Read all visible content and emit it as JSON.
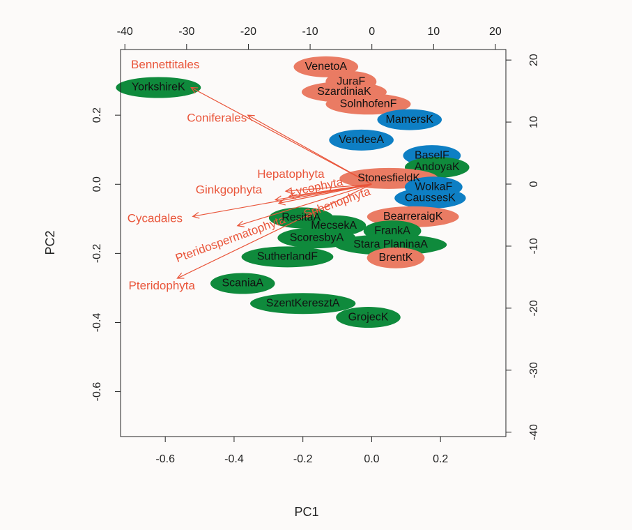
{
  "chart_data": {
    "type": "scatter",
    "subtype": "PCA biplot",
    "xlabel": "PC1",
    "ylabel": "PC2",
    "x_primary": {
      "lim": [
        -0.73,
        0.39
      ],
      "ticks": [
        -0.6,
        -0.4,
        -0.2,
        0.0,
        0.2
      ],
      "tick_labels": [
        "-0.6",
        "-0.4",
        "-0.2",
        "0.0",
        "0.2"
      ]
    },
    "y_primary": {
      "lim": [
        -0.73,
        0.39
      ],
      "ticks": [
        -0.6,
        -0.4,
        -0.2,
        0.0,
        0.2
      ],
      "tick_labels": [
        "-0.6",
        "-0.4",
        "-0.2",
        "0.0",
        "0.2"
      ]
    },
    "x_secondary": {
      "lim": [
        -40.7,
        21.7
      ],
      "ticks": [
        -40,
        -30,
        -20,
        -10,
        0,
        10,
        20
      ],
      "tick_labels": [
        "-40",
        "-30",
        "-20",
        "-10",
        "0",
        "10",
        "20"
      ]
    },
    "y_secondary": {
      "lim": [
        -40.7,
        21.7
      ],
      "ticks": [
        -40,
        -30,
        -20,
        -10,
        0,
        10,
        20
      ],
      "tick_labels": [
        "-40",
        "-30",
        "-20",
        "-10",
        "0",
        "10",
        "20"
      ]
    },
    "colors": {
      "green": "#0f8a3c",
      "blue": "#0e7fc4",
      "salmon": "#ea7b63",
      "loading": "#e9553a"
    },
    "points": [
      {
        "label": "VenetoA",
        "x": -0.133,
        "y": 0.34,
        "group": "salmon"
      },
      {
        "label": "JuraF",
        "x": -0.06,
        "y": 0.297,
        "group": "salmon"
      },
      {
        "label": "SzardiniaK",
        "x": -0.08,
        "y": 0.267,
        "group": "salmon"
      },
      {
        "label": "SolnhofenF",
        "x": -0.01,
        "y": 0.232,
        "group": "salmon"
      },
      {
        "label": "YorkshireK",
        "x": -0.62,
        "y": 0.28,
        "group": "green"
      },
      {
        "label": "MamersK",
        "x": 0.11,
        "y": 0.187,
        "group": "blue"
      },
      {
        "label": "VendeeA",
        "x": -0.03,
        "y": 0.128,
        "group": "blue"
      },
      {
        "label": "BaselF",
        "x": 0.175,
        "y": 0.083,
        "group": "blue"
      },
      {
        "label": "AndoyaK",
        "x": 0.19,
        "y": 0.049,
        "group": "green"
      },
      {
        "label": "StonesfieldK",
        "x": 0.05,
        "y": 0.017,
        "group": "salmon"
      },
      {
        "label": "WolkaF",
        "x": 0.18,
        "y": -0.008,
        "group": "blue"
      },
      {
        "label": "CaussesK",
        "x": 0.17,
        "y": -0.04,
        "group": "blue"
      },
      {
        "label": "BearreraigK",
        "x": 0.12,
        "y": -0.094,
        "group": "salmon"
      },
      {
        "label": "ResitaA",
        "x": -0.205,
        "y": -0.097,
        "group": "green"
      },
      {
        "label": "MecsekA",
        "x": -0.11,
        "y": -0.12,
        "group": "green"
      },
      {
        "label": "FrankA",
        "x": 0.06,
        "y": -0.135,
        "group": "green"
      },
      {
        "label": "ScoresbyA",
        "x": -0.16,
        "y": -0.155,
        "group": "green"
      },
      {
        "label": "Stara PlaninaA",
        "x": 0.055,
        "y": -0.175,
        "group": "green"
      },
      {
        "label": "SutherlandF",
        "x": -0.245,
        "y": -0.21,
        "group": "green"
      },
      {
        "label": "BrentK",
        "x": 0.07,
        "y": -0.213,
        "group": "salmon"
      },
      {
        "label": "ScaniaA",
        "x": -0.375,
        "y": -0.287,
        "group": "green"
      },
      {
        "label": "SzentKeresztA",
        "x": -0.2,
        "y": -0.345,
        "group": "green"
      },
      {
        "label": "GrojecK",
        "x": -0.01,
        "y": -0.385,
        "group": "green"
      }
    ],
    "loadings": [
      {
        "label": "Bennettitales",
        "x": -0.525,
        "y": 0.28
      },
      {
        "label": "Coniferales",
        "x": -0.36,
        "y": 0.2
      },
      {
        "label": "Hepatophyta",
        "x": -0.25,
        "y": -0.02
      },
      {
        "label": "Ginkgophyta",
        "x": -0.24,
        "y": -0.035
      },
      {
        "label": "Lycophyta",
        "x": -0.28,
        "y": -0.045
      },
      {
        "label": "Sphenophyta",
        "x": -0.27,
        "y": -0.055
      },
      {
        "label": "Cycadales",
        "x": -0.52,
        "y": -0.093
      },
      {
        "label": "Pteridospermatophyta",
        "x": -0.39,
        "y": -0.12
      },
      {
        "label": "Pteridophyta",
        "x": -0.565,
        "y": -0.272
      }
    ],
    "loading_labels": [
      {
        "label": "Bennettitales",
        "x": -0.6,
        "y": 0.345,
        "rot": 0
      },
      {
        "label": "Coniferales",
        "x": -0.45,
        "y": 0.19,
        "rot": 0
      },
      {
        "label": "Hepatophyta",
        "x": -0.235,
        "y": 0.028,
        "rot": 0
      },
      {
        "label": "Ginkgophyta",
        "x": -0.415,
        "y": -0.018,
        "rot": 0
      },
      {
        "label": "Lycophyta",
        "x": -0.16,
        "y": -0.01,
        "rot": -12
      },
      {
        "label": "Sphenophyta",
        "x": -0.1,
        "y": -0.055,
        "rot": -20
      },
      {
        "label": "Cycadales",
        "x": -0.63,
        "y": -0.1,
        "rot": 0
      },
      {
        "label": "Pteridospermatophyta",
        "x": -0.41,
        "y": -0.16,
        "rot": -20
      },
      {
        "label": "Pteridophyta",
        "x": -0.61,
        "y": -0.295,
        "rot": 0
      }
    ]
  }
}
